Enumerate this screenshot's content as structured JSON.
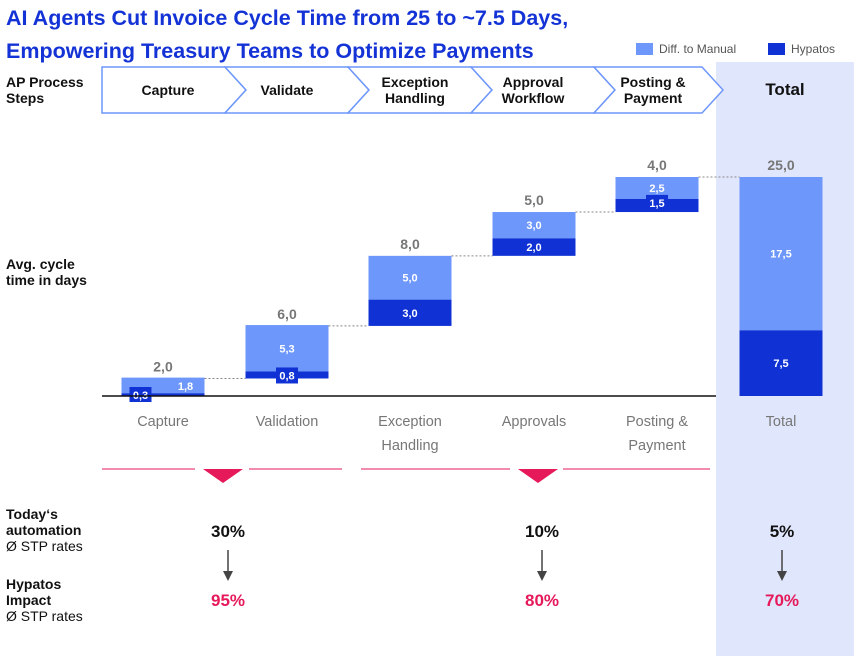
{
  "header": {
    "title": "AI Agents Cut Invoice Cycle Time from 25 to ~7.5 Days, Empowering Treasury Teams to Optimize Payments"
  },
  "legend": {
    "diff_label": "Diff. to Manual",
    "hypatos_label": "Hypatos"
  },
  "colors": {
    "diff": "#6e97fb",
    "hypatos": "#1032d4",
    "accent": "#e6195a",
    "title": "#1433d6",
    "total_panel": "#e0e6fb"
  },
  "process": {
    "row_label_line1": "AP Process",
    "row_label_line2": "Steps",
    "steps": [
      {
        "line1": "Capture",
        "line2": ""
      },
      {
        "line1": "Validate",
        "line2": ""
      },
      {
        "line1": "Exception",
        "line2": "Handling"
      },
      {
        "line1": "Approval",
        "line2": "Workflow"
      },
      {
        "line1": "Posting &",
        "line2": "Payment"
      }
    ],
    "total_label": "Total"
  },
  "axis_label": {
    "line1": "Avg. cycle",
    "line2": "time in days"
  },
  "chart_data": {
    "type": "bar",
    "subtype": "stacked-waterfall",
    "categories": [
      "Capture",
      "Validation",
      "Exception Handling",
      "Approvals",
      "Posting & Payment",
      "Total"
    ],
    "category_lines": [
      [
        "Capture"
      ],
      [
        "Validation"
      ],
      [
        "Exception",
        "Handling"
      ],
      [
        "Approvals"
      ],
      [
        "Posting &",
        "Payment"
      ],
      [
        "Total"
      ]
    ],
    "series": [
      {
        "name": "Hypatos",
        "values": [
          0.3,
          0.8,
          3.0,
          2.0,
          1.5,
          7.5
        ],
        "labels": [
          "0,3",
          "0,8",
          "3,0",
          "2,0",
          "1,5",
          "7,5"
        ]
      },
      {
        "name": "Diff. to Manual",
        "values": [
          1.8,
          5.3,
          5.0,
          3.0,
          2.5,
          17.5
        ],
        "labels": [
          "1,8",
          "5,3",
          "5,0",
          "3,0",
          "2,5",
          "17,5"
        ]
      }
    ],
    "totals": [
      2.0,
      6.0,
      8.0,
      5.0,
      4.0,
      25.0
    ],
    "total_labels": [
      "2,0",
      "6,0",
      "8,0",
      "5,0",
      "4,0",
      "25,0"
    ],
    "bases": [
      0,
      2,
      8,
      16,
      21,
      0
    ],
    "ylim": [
      0,
      25
    ],
    "grid": false,
    "legend_position": "top-right"
  },
  "stp": {
    "today_line1": "Today‘s",
    "today_line2": "automation",
    "today_line3": "Ø STP rates",
    "impact_line1": "Hypatos",
    "impact_line2": "Impact",
    "impact_line3": "Ø STP rates",
    "groups": [
      {
        "today": "30%",
        "impact": "95%"
      },
      {
        "today": "10%",
        "impact": "80%"
      },
      {
        "today": "5%",
        "impact": "70%"
      }
    ]
  }
}
